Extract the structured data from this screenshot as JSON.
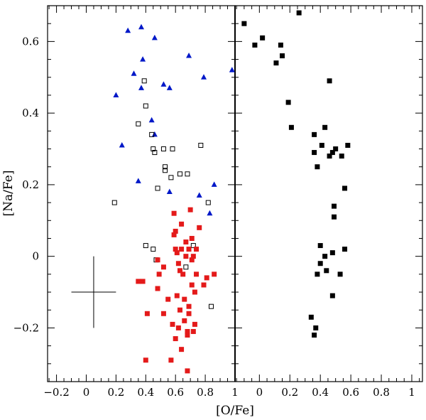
{
  "chart_data": [
    {
      "panel": "left",
      "type": "scatter",
      "xlabel": "[O/Fe]",
      "ylabel": "[Na/Fe]",
      "xlim": [
        -0.26,
        1.0
      ],
      "ylim": [
        -0.35,
        0.7
      ],
      "x_ticks": [
        -0.2,
        0,
        0.2,
        0.4,
        0.6,
        0.8,
        1
      ],
      "x_tick_labels": [
        "−0.2",
        "0",
        "0.2",
        "0.4",
        "0.6",
        "0.8",
        "1"
      ],
      "y_ticks": [
        -0.2,
        0,
        0.2,
        0.4,
        0.6
      ],
      "y_tick_labels": [
        "−0.2",
        "0",
        "0.2",
        "0.4",
        "0.6"
      ],
      "error_bar": {
        "x": 0.05,
        "y": -0.1,
        "xerr": 0.15,
        "yerr": 0.1
      },
      "series": [
        {
          "name": "blue triangles",
          "marker": "triangle",
          "color": "#0018c8",
          "points": [
            [
              0.28,
              0.63
            ],
            [
              0.37,
              0.64
            ],
            [
              0.46,
              0.61
            ],
            [
              0.38,
              0.55
            ],
            [
              0.69,
              0.56
            ],
            [
              0.32,
              0.51
            ],
            [
              0.37,
              0.47
            ],
            [
              0.52,
              0.48
            ],
            [
              0.56,
              0.47
            ],
            [
              0.79,
              0.5
            ],
            [
              0.98,
              0.52
            ],
            [
              0.2,
              0.45
            ],
            [
              0.44,
              0.38
            ],
            [
              0.46,
              0.34
            ],
            [
              0.24,
              0.31
            ],
            [
              0.35,
              0.21
            ],
            [
              0.56,
              0.18
            ],
            [
              0.76,
              0.17
            ],
            [
              0.86,
              0.2
            ],
            [
              0.83,
              0.12
            ]
          ]
        },
        {
          "name": "open squares",
          "marker": "open-square",
          "color": "#000000",
          "points": [
            [
              0.39,
              0.49
            ],
            [
              0.4,
              0.42
            ],
            [
              0.35,
              0.37
            ],
            [
              0.44,
              0.34
            ],
            [
              0.45,
              0.3
            ],
            [
              0.46,
              0.29
            ],
            [
              0.52,
              0.3
            ],
            [
              0.58,
              0.3
            ],
            [
              0.77,
              0.31
            ],
            [
              0.53,
              0.25
            ],
            [
              0.53,
              0.24
            ],
            [
              0.57,
              0.22
            ],
            [
              0.63,
              0.23
            ],
            [
              0.68,
              0.23
            ],
            [
              0.48,
              0.19
            ],
            [
              0.19,
              0.15
            ],
            [
              0.82,
              0.15
            ],
            [
              0.4,
              0.03
            ],
            [
              0.45,
              0.02
            ],
            [
              0.72,
              0.03
            ],
            [
              0.47,
              -0.01
            ],
            [
              0.67,
              -0.03
            ],
            [
              0.84,
              -0.14
            ]
          ]
        },
        {
          "name": "red squares",
          "marker": "filled-square",
          "color": "#e41a1a",
          "points": [
            [
              0.59,
              0.12
            ],
            [
              0.7,
              0.13
            ],
            [
              0.64,
              0.09
            ],
            [
              0.6,
              0.07
            ],
            [
              0.59,
              0.06
            ],
            [
              0.76,
              0.08
            ],
            [
              0.71,
              0.05
            ],
            [
              0.67,
              0.04
            ],
            [
              0.6,
              0.02
            ],
            [
              0.61,
              0.01
            ],
            [
              0.64,
              0.02
            ],
            [
              0.69,
              0.02
            ],
            [
              0.74,
              0.02
            ],
            [
              0.67,
              0.0
            ],
            [
              0.72,
              0.0
            ],
            [
              0.62,
              -0.02
            ],
            [
              0.71,
              -0.01
            ],
            [
              0.48,
              -0.01
            ],
            [
              0.52,
              -0.03
            ],
            [
              0.63,
              -0.04
            ],
            [
              0.65,
              -0.05
            ],
            [
              0.74,
              -0.05
            ],
            [
              0.81,
              -0.06
            ],
            [
              0.86,
              -0.05
            ],
            [
              0.49,
              -0.05
            ],
            [
              0.35,
              -0.07
            ],
            [
              0.38,
              -0.07
            ],
            [
              0.71,
              -0.08
            ],
            [
              0.79,
              -0.08
            ],
            [
              0.48,
              -0.09
            ],
            [
              0.73,
              -0.1
            ],
            [
              0.55,
              -0.12
            ],
            [
              0.61,
              -0.11
            ],
            [
              0.66,
              -0.12
            ],
            [
              0.69,
              -0.14
            ],
            [
              0.63,
              -0.15
            ],
            [
              0.41,
              -0.16
            ],
            [
              0.52,
              -0.16
            ],
            [
              0.69,
              -0.16
            ],
            [
              0.58,
              -0.19
            ],
            [
              0.66,
              -0.18
            ],
            [
              0.73,
              -0.19
            ],
            [
              0.62,
              -0.2
            ],
            [
              0.68,
              -0.21
            ],
            [
              0.72,
              -0.21
            ],
            [
              0.6,
              -0.23
            ],
            [
              0.68,
              -0.22
            ],
            [
              0.64,
              -0.26
            ],
            [
              0.4,
              -0.29
            ],
            [
              0.57,
              -0.29
            ],
            [
              0.68,
              -0.32
            ]
          ]
        }
      ]
    },
    {
      "panel": "right",
      "type": "scatter",
      "xlabel": "[O/Fe]",
      "ylabel": "",
      "xlim": [
        -0.16,
        1.07
      ],
      "ylim": [
        -0.35,
        0.7
      ],
      "x_ticks": [
        0,
        0.2,
        0.4,
        0.6,
        0.8,
        1
      ],
      "x_tick_labels": [
        "0",
        "0.2",
        "0.4",
        "0.6",
        "0.8",
        "1"
      ],
      "y_ticks": [
        -0.2,
        0,
        0.2,
        0.4,
        0.6
      ],
      "y_tick_labels": [],
      "series": [
        {
          "name": "black squares",
          "marker": "filled-square",
          "color": "#000000",
          "points": [
            [
              0.26,
              0.68
            ],
            [
              -0.1,
              0.65
            ],
            [
              -0.03,
              0.59
            ],
            [
              0.02,
              0.61
            ],
            [
              0.14,
              0.59
            ],
            [
              0.15,
              0.56
            ],
            [
              0.11,
              0.54
            ],
            [
              0.46,
              0.49
            ],
            [
              0.19,
              0.43
            ],
            [
              0.21,
              0.36
            ],
            [
              0.43,
              0.36
            ],
            [
              0.36,
              0.34
            ],
            [
              0.41,
              0.31
            ],
            [
              0.58,
              0.31
            ],
            [
              0.5,
              0.3
            ],
            [
              0.36,
              0.29
            ],
            [
              0.48,
              0.29
            ],
            [
              0.46,
              0.28
            ],
            [
              0.54,
              0.28
            ],
            [
              0.38,
              0.25
            ],
            [
              0.56,
              0.19
            ],
            [
              0.49,
              0.14
            ],
            [
              0.49,
              0.11
            ],
            [
              0.4,
              0.03
            ],
            [
              0.56,
              0.02
            ],
            [
              0.43,
              0.0
            ],
            [
              0.48,
              0.01
            ],
            [
              0.4,
              -0.02
            ],
            [
              0.44,
              -0.04
            ],
            [
              0.38,
              -0.05
            ],
            [
              0.53,
              -0.05
            ],
            [
              0.48,
              -0.11
            ],
            [
              0.34,
              -0.17
            ],
            [
              0.37,
              -0.2
            ],
            [
              0.36,
              -0.22
            ]
          ]
        }
      ]
    }
  ]
}
